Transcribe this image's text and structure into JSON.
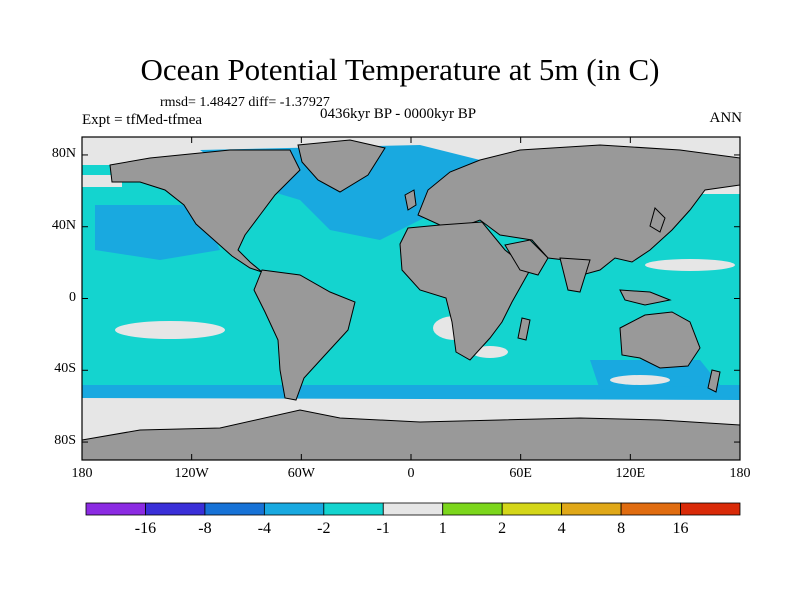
{
  "title": "Ocean Potential Temperature at 5m (in C)",
  "stats": "rmsd= 1.48427 diff= -1.37927",
  "experiment": "Expt = tfMed-tfmea",
  "period": "0436kyr BP - 0000kyr BP",
  "season": "ANN",
  "axes": {
    "y_ticks": [
      {
        "label": "80N",
        "lat": 80
      },
      {
        "label": "40N",
        "lat": 40
      },
      {
        "label": "0",
        "lat": 0
      },
      {
        "label": "40S",
        "lat": -40
      },
      {
        "label": "80S",
        "lat": -80
      }
    ],
    "x_ticks": [
      {
        "label": "180",
        "lon": -180
      },
      {
        "label": "120W",
        "lon": -120
      },
      {
        "label": "60W",
        "lon": -60
      },
      {
        "label": "0",
        "lon": 0
      },
      {
        "label": "60E",
        "lon": 60
      },
      {
        "label": "120E",
        "lon": 120
      },
      {
        "label": "180",
        "lon": 180
      }
    ],
    "lon_range": [
      -180,
      180
    ],
    "lat_range": [
      -90,
      90
    ]
  },
  "colorbar": {
    "colors": [
      "#8b2be2",
      "#3a2fd8",
      "#1772d6",
      "#19a9e0",
      "#14d4cf",
      "#e6e6e6",
      "#7cd61c",
      "#d4d619",
      "#e0a818",
      "#e06c10",
      "#d92a08"
    ],
    "labels": [
      "-16",
      "-8",
      "-4",
      "-2",
      "-1",
      "1",
      "2",
      "4",
      "8",
      "16"
    ]
  },
  "colors": {
    "land": "#999999",
    "ocean_main": "#14d4cf",
    "ocean_cool": "#19a9e0",
    "near_zero": "#e6e6e6"
  }
}
